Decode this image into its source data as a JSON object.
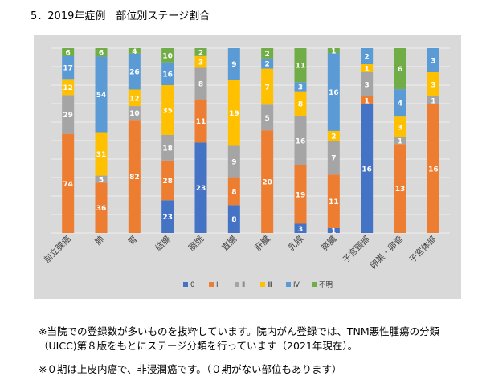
{
  "heading": "5．2019年症例　部位別ステージ割合",
  "notes": [
    "※当院での登録数が多いものを抜粋しています。院内がん登録では、TNM悪性腫瘍の分類（UICC)第８版をもとにステージ分類を行っています（2021年現在）。",
    "※０期は上皮内癌で、非浸潤癌です。（０期がない部位もあります）"
  ],
  "colors": {
    "plot_bg": "#d9d9d9",
    "gridline": "#f0f0f0",
    "axis_text": "#404040",
    "label_text": "#ffffff"
  },
  "chart_data": {
    "type": "bar",
    "stacked": true,
    "normalized": true,
    "categories": [
      "前立腺癌",
      "肺",
      "胃",
      "結腸",
      "膀胱",
      "直腸",
      "肝臓",
      "乳腺",
      "膵臓",
      "子宮頸部",
      "卵巣・卵管",
      "子宮体部"
    ],
    "series": [
      {
        "name": "0",
        "color": "#4472c4",
        "values": [
          0,
          0,
          0,
          23,
          23,
          8,
          0,
          3,
          1,
          16,
          0,
          0
        ]
      },
      {
        "name": "Ⅰ",
        "color": "#ed7d31",
        "values": [
          74,
          36,
          82,
          28,
          11,
          8,
          20,
          19,
          11,
          1,
          13,
          16
        ]
      },
      {
        "name": "Ⅱ",
        "color": "#a5a5a5",
        "values": [
          29,
          5,
          10,
          18,
          8,
          9,
          5,
          16,
          7,
          3,
          1,
          1
        ]
      },
      {
        "name": "Ⅲ",
        "color": "#ffc000",
        "values": [
          12,
          31,
          12,
          35,
          3,
          19,
          7,
          8,
          2,
          1,
          3,
          3
        ]
      },
      {
        "name": "Ⅳ",
        "color": "#5b9bd5",
        "values": [
          17,
          54,
          26,
          16,
          0,
          9,
          2,
          3,
          16,
          2,
          4,
          3
        ]
      },
      {
        "name": "不明",
        "color": "#70ad47",
        "values": [
          6,
          6,
          4,
          10,
          2,
          0,
          2,
          11,
          1,
          0,
          6,
          0
        ]
      }
    ],
    "ylim": [
      0,
      1
    ],
    "grid": true,
    "legend_position": "bottom"
  }
}
